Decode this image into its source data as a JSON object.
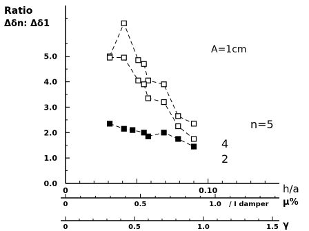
{
  "chart_data": {
    "type": "line",
    "ylabel_line1": "Ratio",
    "ylabel_line2": "Δδn: Δδ1",
    "xlabel": "h/a",
    "annotation": "A=1cm",
    "ylim": [
      0,
      7.0
    ],
    "xlim": [
      0,
      0.15
    ],
    "y_ticks": [
      {
        "value": 0.0,
        "label": "0.0"
      },
      {
        "value": 1.0,
        "label": "1.0"
      },
      {
        "value": 2.0,
        "label": "2.0"
      },
      {
        "value": 3.0,
        "label": "3.0"
      },
      {
        "value": 4.0,
        "label": "4.0"
      },
      {
        "value": 5.0,
        "label": "5.0"
      }
    ],
    "x_ticks": [
      {
        "value": 0,
        "label": "0"
      },
      {
        "value": 0.1,
        "label": "0.10"
      }
    ],
    "series": [
      {
        "name": "n=5",
        "marker": "open-square",
        "x": [
          0.031,
          0.041,
          0.051,
          0.055,
          0.058,
          0.069,
          0.079,
          0.09
        ],
        "y": [
          5.0,
          6.3,
          4.85,
          4.7,
          4.05,
          3.9,
          2.65,
          2.35
        ]
      },
      {
        "name": "4",
        "marker": "open-square",
        "x": [
          0.031,
          0.041,
          0.051,
          0.055,
          0.058,
          0.069,
          0.079,
          0.09
        ],
        "y": [
          4.95,
          4.95,
          4.05,
          3.9,
          3.35,
          3.2,
          2.25,
          1.75
        ]
      },
      {
        "name": "2",
        "marker": "filled-square",
        "x": [
          0.031,
          0.041,
          0.047,
          0.055,
          0.058,
          0.069,
          0.079,
          0.09
        ],
        "y": [
          2.35,
          2.15,
          2.1,
          2.0,
          1.85,
          2.0,
          1.75,
          1.45
        ]
      }
    ],
    "secondary_axes": [
      {
        "label": "μ%",
        "inline_label": "/ I damper",
        "ticks": [
          {
            "value": 0,
            "label": "0"
          },
          {
            "value": 0.5,
            "label": "0.5"
          },
          {
            "value": 1.0,
            "label": "1.0"
          }
        ]
      },
      {
        "label": "γ",
        "ticks": [
          {
            "value": 0,
            "label": "0"
          },
          {
            "value": 0.5,
            "label": "0.5"
          },
          {
            "value": 1.0,
            "label": "1.0"
          },
          {
            "value": 1.5,
            "label": "1.5"
          }
        ]
      }
    ]
  }
}
